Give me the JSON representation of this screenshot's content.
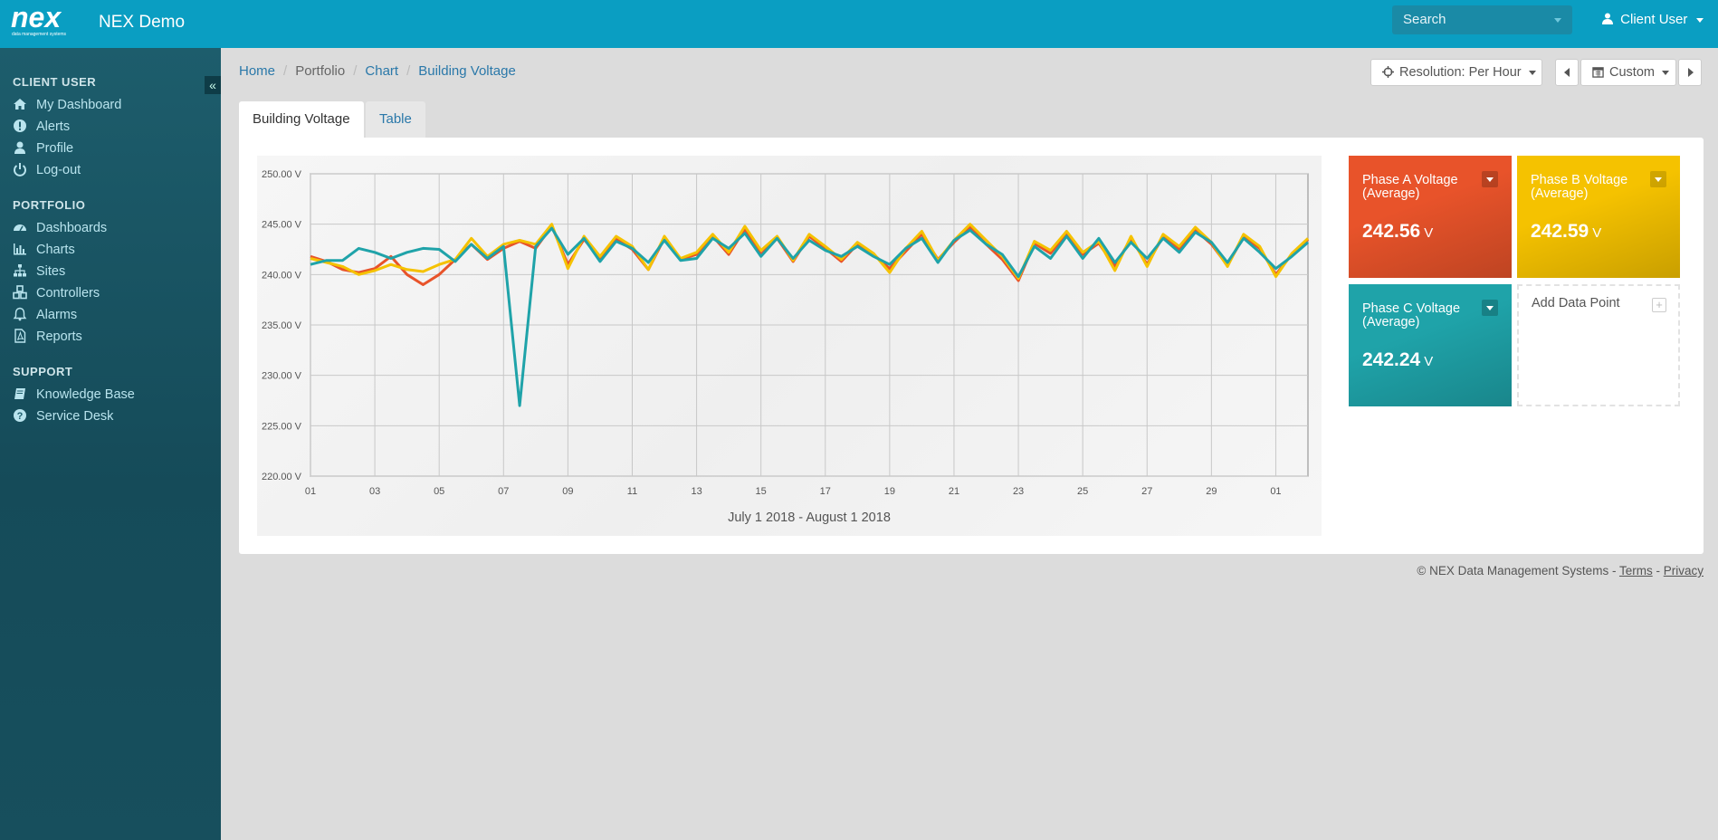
{
  "app": {
    "title": "NEX Demo",
    "logo_text": "nex",
    "logo_subtext": "data management systems"
  },
  "header": {
    "search_placeholder": "Search",
    "user_label": "Client User"
  },
  "sidebar": {
    "collapse_icon": "double-chevron-left-icon",
    "sections": [
      {
        "title": "CLIENT USER",
        "items": [
          {
            "label": "My Dashboard",
            "icon": "home-icon"
          },
          {
            "label": "Alerts",
            "icon": "exclamation-circle-icon"
          },
          {
            "label": "Profile",
            "icon": "user-icon"
          },
          {
            "label": "Log-out",
            "icon": "power-icon"
          }
        ]
      },
      {
        "title": "PORTFOLIO",
        "items": [
          {
            "label": "Dashboards",
            "icon": "dashboard-icon"
          },
          {
            "label": "Charts",
            "icon": "bar-chart-icon"
          },
          {
            "label": "Sites",
            "icon": "sitemap-icon"
          },
          {
            "label": "Controllers",
            "icon": "cubes-icon"
          },
          {
            "label": "Alarms",
            "icon": "bell-icon"
          },
          {
            "label": "Reports",
            "icon": "file-pdf-icon"
          }
        ]
      },
      {
        "title": "SUPPORT",
        "items": [
          {
            "label": "Knowledge Base",
            "icon": "book-icon"
          },
          {
            "label": "Service Desk",
            "icon": "question-circle-icon"
          }
        ]
      }
    ]
  },
  "breadcrumb": [
    "Home",
    "Portfolio",
    "Chart",
    "Building Voltage"
  ],
  "controls": {
    "resolution_label": "Resolution: Per Hour",
    "range_label": "Custom"
  },
  "tabs": [
    {
      "label": "Building Voltage",
      "active": true
    },
    {
      "label": "Table",
      "active": false
    }
  ],
  "stat_cards": [
    {
      "title": "Phase A Voltage (Average)",
      "value": "242.56",
      "unit": "V",
      "color": "#e8532a"
    },
    {
      "title": "Phase B Voltage (Average)",
      "value": "242.59",
      "unit": "V",
      "color": "#f5c200"
    },
    {
      "title": "Phase C Voltage (Average)",
      "value": "242.24",
      "unit": "V",
      "color": "#1fa3a9"
    }
  ],
  "add_card": {
    "title": "Add Data Point"
  },
  "footer": {
    "copyright": "© NEX Data Management Systems -",
    "terms": "Terms",
    "separator": "-",
    "privacy": "Privacy"
  },
  "chart_data": {
    "type": "line",
    "xlabel": "July 1 2018 - August 1 2018",
    "ylabel": "",
    "ylim": [
      220,
      250
    ],
    "yticks": [
      "220.00 V",
      "225.00 V",
      "230.00 V",
      "235.00 V",
      "240.00 V",
      "245.00 V",
      "250.00 V"
    ],
    "ytick_values": [
      220,
      225,
      230,
      235,
      240,
      245,
      250
    ],
    "xticks": [
      "01",
      "03",
      "05",
      "07",
      "09",
      "11",
      "13",
      "15",
      "17",
      "19",
      "21",
      "23",
      "25",
      "27",
      "29",
      "01"
    ],
    "xlim": [
      1,
      32
    ],
    "grid": true,
    "legend": "none",
    "x": [
      1,
      1.5,
      2,
      2.5,
      3,
      3.5,
      4,
      4.5,
      5,
      5.5,
      6,
      6.5,
      7,
      7.5,
      8,
      8.5,
      9,
      9.5,
      10,
      10.5,
      11,
      11.5,
      12,
      12.5,
      13,
      13.5,
      14,
      14.5,
      15,
      15.5,
      16,
      16.5,
      17,
      17.5,
      18,
      18.5,
      19,
      19.5,
      20,
      20.5,
      21,
      21.5,
      22,
      22.5,
      23,
      23.5,
      24,
      24.5,
      25,
      25.5,
      26,
      26.5,
      27,
      27.5,
      28,
      28.5,
      29,
      29.5,
      30,
      30.5,
      31,
      31.5,
      32
    ],
    "series": [
      {
        "color": "#e8532a",
        "values": [
          241.8,
          241.3,
          240.5,
          240.2,
          240.6,
          241.8,
          240.0,
          239.0,
          240.0,
          241.5,
          243.0,
          241.5,
          242.6,
          243.3,
          242.6,
          244.8,
          241.0,
          243.5,
          241.6,
          243.5,
          242.5,
          240.5,
          243.6,
          241.5,
          242.0,
          243.8,
          242.0,
          244.5,
          242.0,
          243.6,
          241.3,
          243.8,
          242.6,
          241.3,
          243.0,
          242.0,
          240.6,
          242.3,
          244.0,
          241.5,
          243.2,
          244.7,
          243.0,
          241.5,
          239.4,
          243.1,
          242.1,
          244.1,
          242.0,
          243.1,
          240.8,
          243.6,
          241.0,
          243.8,
          242.5,
          244.4,
          243.0,
          240.9,
          243.8,
          242.6,
          240.0,
          242.0,
          243.5
        ]
      },
      {
        "color": "#f5c200",
        "values": [
          241.6,
          241.2,
          240.8,
          240.0,
          240.4,
          241.0,
          240.5,
          240.3,
          241.0,
          241.5,
          243.6,
          241.8,
          243.0,
          243.4,
          243.0,
          245.0,
          240.6,
          243.8,
          241.8,
          243.8,
          242.8,
          240.5,
          243.8,
          241.6,
          242.2,
          244.0,
          242.2,
          244.8,
          242.4,
          243.8,
          241.4,
          244.0,
          242.8,
          241.5,
          243.2,
          242.1,
          240.2,
          242.6,
          244.3,
          241.4,
          243.4,
          245.0,
          243.4,
          241.8,
          239.6,
          243.3,
          242.4,
          244.3,
          242.2,
          243.3,
          240.4,
          243.8,
          240.8,
          244.0,
          242.8,
          244.7,
          243.2,
          240.8,
          244.0,
          242.8,
          239.8,
          242.1,
          243.6
        ]
      },
      {
        "color": "#1fa3a9",
        "values": [
          241.0,
          241.4,
          241.4,
          242.6,
          242.2,
          241.6,
          242.2,
          242.6,
          242.5,
          241.3,
          243.0,
          241.6,
          242.8,
          227.0,
          242.8,
          244.6,
          242.0,
          243.6,
          241.3,
          243.3,
          242.6,
          241.2,
          243.4,
          241.4,
          241.6,
          243.6,
          242.6,
          244.1,
          241.8,
          243.6,
          241.6,
          243.4,
          242.4,
          241.8,
          242.8,
          241.8,
          241.0,
          242.6,
          243.6,
          241.2,
          243.4,
          244.4,
          243.0,
          242.0,
          239.8,
          242.8,
          241.6,
          243.8,
          241.6,
          243.6,
          241.2,
          243.2,
          241.6,
          243.6,
          242.2,
          244.2,
          243.2,
          241.2,
          243.6,
          242.2,
          240.6,
          241.8,
          243.2
        ]
      }
    ]
  }
}
